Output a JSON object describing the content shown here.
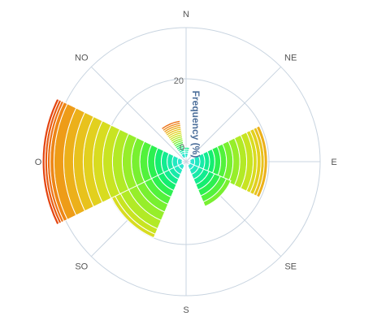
{
  "chart_data": {
    "type": "polar-stacked-bar",
    "r_axis_title": "Frequency (%)",
    "r_ticks": [
      {
        "value": 20,
        "label": "20"
      },
      {
        "value": 0,
        "label": "0"
      }
    ],
    "r_max": 40,
    "directions": [
      {
        "label": "N",
        "angle": 0,
        "show": true
      },
      {
        "label": "NE",
        "angle": 45,
        "show": true
      },
      {
        "label": "E",
        "angle": 90,
        "show": true
      },
      {
        "label": "SE",
        "angle": 135,
        "show": true
      },
      {
        "label": "S",
        "angle": 180,
        "show": true
      },
      {
        "label": "SO",
        "angle": 225,
        "show": true
      },
      {
        "label": "O",
        "angle": 270,
        "show": true
      },
      {
        "label": "NO",
        "angle": 315,
        "show": true
      },
      {
        "label": "",
        "angle": 337.5,
        "show": false
      }
    ],
    "bins": 20,
    "colors": [
      "#2ee6d0",
      "#22e8c0",
      "#18eaa8",
      "#12ec90",
      "#14ee70",
      "#2cf050",
      "#52f23c",
      "#78f030",
      "#96ee2a",
      "#b2ea26",
      "#c8e422",
      "#d8dc20",
      "#e2d01e",
      "#e8c21c",
      "#ecb01a",
      "#ee9c18",
      "#ee8616",
      "#ec7014",
      "#e85a12",
      "#e44410"
    ],
    "petals": [
      {
        "direction": "N",
        "angle": 0,
        "width": 14,
        "values": [
          1.4,
          0.6,
          0.6,
          0.6
        ]
      },
      {
        "direction": "NNO",
        "angle": 337.5,
        "width": 14,
        "values": [
          1.4,
          0.6,
          0.6,
          0.6,
          0.6,
          0.6,
          0.6,
          0.6,
          0.6,
          0.6,
          0.6,
          0.6,
          0.6,
          0.6,
          0.6,
          0.6,
          0.6,
          0.6
        ]
      },
      {
        "direction": "E",
        "angle": 90,
        "width": 26,
        "values": [
          1.4,
          1.6,
          1.5,
          1.5,
          1.6,
          1.8,
          1.8,
          2.0,
          2.1,
          2.1,
          2.0,
          1.2,
          1.2,
          1.0,
          1.0
        ]
      },
      {
        "direction": "SE",
        "angle": 135,
        "width": 22,
        "values": [
          1.4,
          1.6,
          1.6,
          1.8,
          1.8,
          2.0,
          2.0,
          1.5
        ]
      },
      {
        "direction": "SO",
        "angle": 225,
        "width": 22,
        "values": [
          1.4,
          1.6,
          1.6,
          1.8,
          2.0,
          2.2,
          2.4,
          2.6,
          2.8,
          2.8,
          1.8,
          1.2
        ]
      },
      {
        "direction": "O",
        "angle": 270,
        "width": 26,
        "values": [
          1.4,
          1.6,
          1.6,
          1.8,
          2.0,
          2.2,
          2.4,
          2.6,
          2.8,
          3.0,
          3.0,
          3.0,
          3.0,
          3.0,
          3.0,
          3.0,
          1.2,
          0.8,
          0.8,
          0.8
        ]
      }
    ],
    "grid": true,
    "legend": "none"
  }
}
